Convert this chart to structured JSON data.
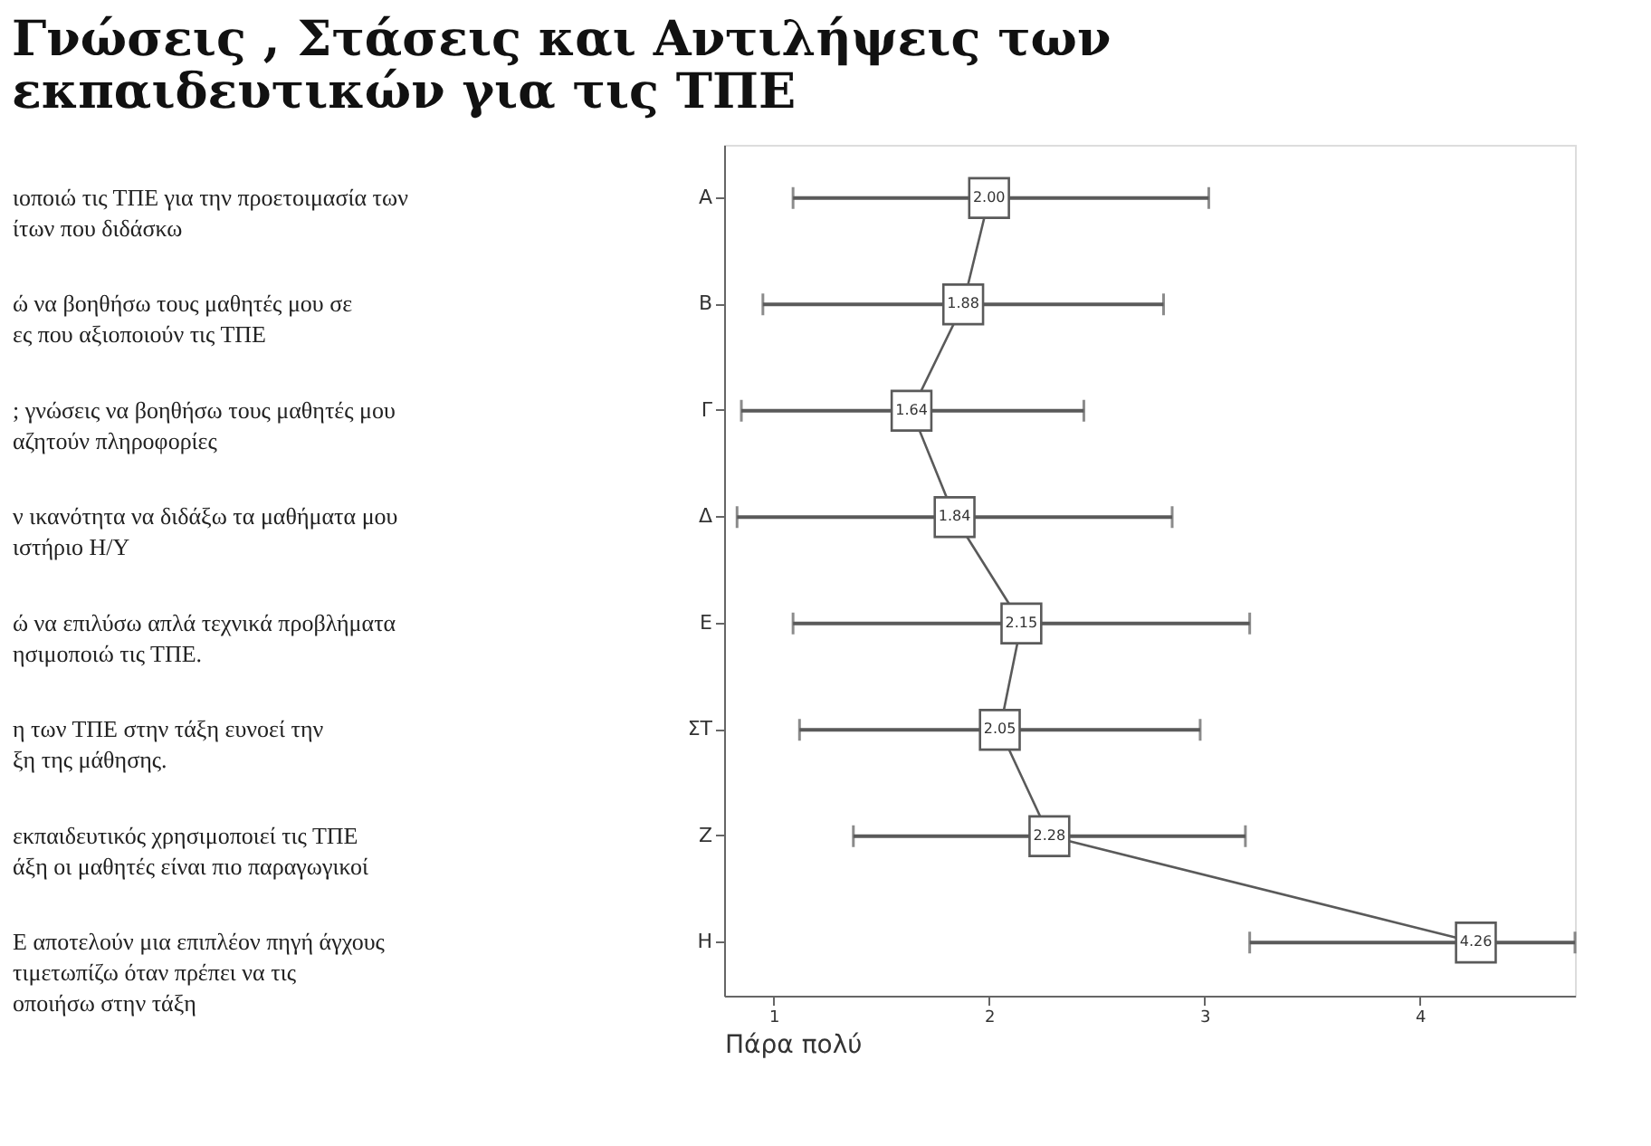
{
  "chart_data": {
    "type": "line",
    "orientation": "horizontal",
    "title": "Γνώσεις , Στάσεις και Αντιλήψεις των εκπαιδευτικών για τις ΤΠΕ",
    "xlabel": "Πάρα πολύ",
    "categories": [
      "Α",
      "Β",
      "Γ",
      "Δ",
      "Ε",
      "ΣΤ",
      "Ζ",
      "Η"
    ],
    "values": [
      2.0,
      1.88,
      1.64,
      1.84,
      2.15,
      2.05,
      2.28,
      4.26
    ],
    "value_labels": [
      "2.00",
      "1.88",
      "1.64",
      "1.84",
      "2.15",
      "2.05",
      "2.28",
      "4.26"
    ],
    "errors": [
      [
        1.09,
        3.02
      ],
      [
        0.95,
        2.81
      ],
      [
        0.85,
        2.44
      ],
      [
        0.83,
        2.85
      ],
      [
        1.09,
        3.21
      ],
      [
        1.12,
        2.98
      ],
      [
        1.37,
        3.19
      ],
      [
        3.21,
        4.72
      ]
    ],
    "color": "#5a5a5a",
    "marker": "square",
    "grid": false,
    "xlim": [
      0.77,
      4.72
    ],
    "xticks": [
      1,
      2,
      3,
      4
    ],
    "annotations": [
      "ιοποιώ τις ΤΠΕ για την προετοιμασία των\nίτων που διδάσκω",
      "ώ να βοηθήσω τους μαθητές μου σε\nες που αξιοποιούν τις ΤΠΕ",
      "; γνώσεις να βοηθήσω τους μαθητές μου\nαζητούν πληροφορίες",
      "ν ικανότητα να διδάξω τα μαθήματα μου\nιστήριο Η/Υ",
      "ώ να επιλύσω απλά τεχνικά προβλήματα\nησιμοποιώ τις ΤΠΕ.",
      "η των ΤΠΕ στην τάξη ευνοεί την\nξη της μάθησης.",
      "εκπαιδευτικός χρησιμοποιεί τις ΤΠΕ\nάξη οι μαθητές είναι πιο παραγωγικοί",
      "Ε αποτελούν μια επιπλέον πηγή άγχους\nτιμετωπίζω όταν πρέπει να τις\nοποιήσω στην τάξη"
    ]
  }
}
